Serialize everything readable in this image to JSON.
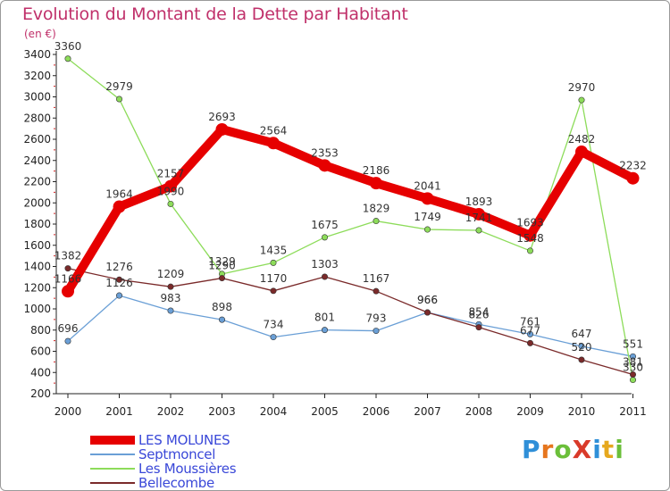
{
  "title": "Evolution du Montant de la Dette par Habitant",
  "unit": "(en €)",
  "brand": "ProXiti",
  "chart_data": {
    "type": "line",
    "title": "Evolution du Montant de la Dette par Habitant",
    "ylabel": "(en €)",
    "xlabel": "",
    "x": [
      "2000",
      "2001",
      "2002",
      "2003",
      "2004",
      "2005",
      "2006",
      "2007",
      "2008",
      "2009",
      "2010",
      "2011"
    ],
    "yticks": [
      200,
      400,
      600,
      800,
      1000,
      1200,
      1400,
      1600,
      1800,
      2000,
      2200,
      2400,
      2600,
      2800,
      3000,
      3200,
      3400
    ],
    "ylim": [
      200,
      3400
    ],
    "legend_position": "bottom-left",
    "series": [
      {
        "name": "LES MOLUNES",
        "color": "#e60000",
        "width": 10,
        "marker": 7,
        "values": [
          1166,
          1964,
          2157,
          2693,
          2564,
          2353,
          2186,
          2041,
          1893,
          1693,
          2482,
          2232
        ],
        "labels": [
          "1166",
          "1964",
          "2157",
          "2693",
          "2564",
          "2353",
          "2186",
          "2041",
          "1893",
          "1693",
          "2482",
          "2232"
        ]
      },
      {
        "name": "Septmoncel",
        "color": "#6a9fd6",
        "width": 1.3,
        "marker": 3.2,
        "values": [
          696,
          1126,
          983,
          898,
          734,
          801,
          793,
          966,
          854,
          761,
          647,
          551
        ],
        "labels": [
          "696",
          "1126",
          "983",
          "898",
          "734",
          "801",
          "793",
          "966",
          "854",
          "761",
          "647",
          "551"
        ]
      },
      {
        "name": "Les Moussières",
        "color": "#8ddc5a",
        "width": 1.3,
        "marker": 3.2,
        "values": [
          3360,
          2979,
          1990,
          1329,
          1435,
          1675,
          1829,
          1749,
          1741,
          1548,
          2970,
          330
        ],
        "labels": [
          "3360",
          "2979",
          "1990",
          "1329",
          "1435",
          "1675",
          "1829",
          "1749",
          "1741",
          "1548",
          "2970",
          "330"
        ]
      },
      {
        "name": "Bellecombe",
        "color": "#7a2a2a",
        "width": 1.3,
        "marker": 3.2,
        "values": [
          1382,
          1276,
          1209,
          1290,
          1170,
          1303,
          1167,
          966,
          826,
          677,
          520,
          381
        ],
        "labels": [
          "1382",
          "1276",
          "1209",
          "1290",
          "1170",
          "1303",
          "1167",
          "966",
          "826",
          "677",
          "520",
          "381"
        ]
      }
    ]
  }
}
